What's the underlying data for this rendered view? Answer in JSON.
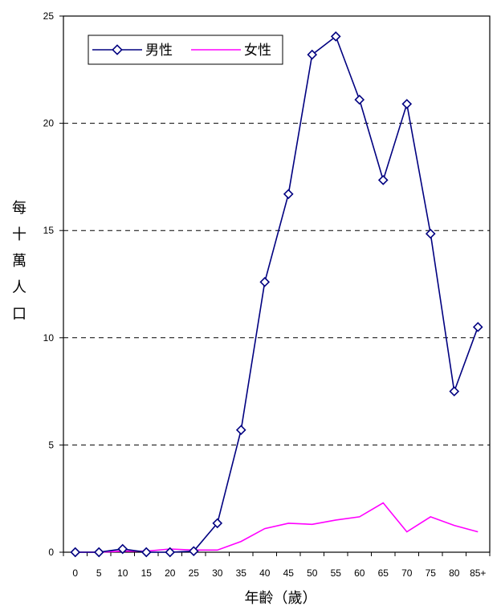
{
  "chart_data": {
    "type": "line",
    "categories": [
      "0",
      "5",
      "10",
      "15",
      "20",
      "25",
      "30",
      "35",
      "40",
      "45",
      "50",
      "55",
      "60",
      "65",
      "70",
      "75",
      "80",
      "85+"
    ],
    "series": [
      {
        "name": "男性",
        "color": "#000080",
        "marker": "diamond",
        "values": [
          0.0,
          0.0,
          0.15,
          0.0,
          0.0,
          0.05,
          1.35,
          5.7,
          12.6,
          16.7,
          23.2,
          24.05,
          21.1,
          17.35,
          20.9,
          14.85,
          7.5,
          10.5
        ]
      },
      {
        "name": "女性",
        "color": "#ff00ff",
        "marker": "none",
        "values": [
          0.0,
          0.0,
          0.05,
          0.05,
          0.15,
          0.1,
          0.1,
          0.5,
          1.1,
          1.35,
          1.3,
          1.5,
          1.65,
          2.3,
          0.95,
          1.65,
          1.25,
          0.95
        ]
      }
    ],
    "ylim": [
      0,
      25
    ],
    "yticks": [
      0,
      5,
      10,
      15,
      20,
      25
    ],
    "xlabel": "年齡（歲）",
    "ylabel": "每十萬人口",
    "grid": "horizontal-dashed",
    "legend_position": "top-left"
  }
}
